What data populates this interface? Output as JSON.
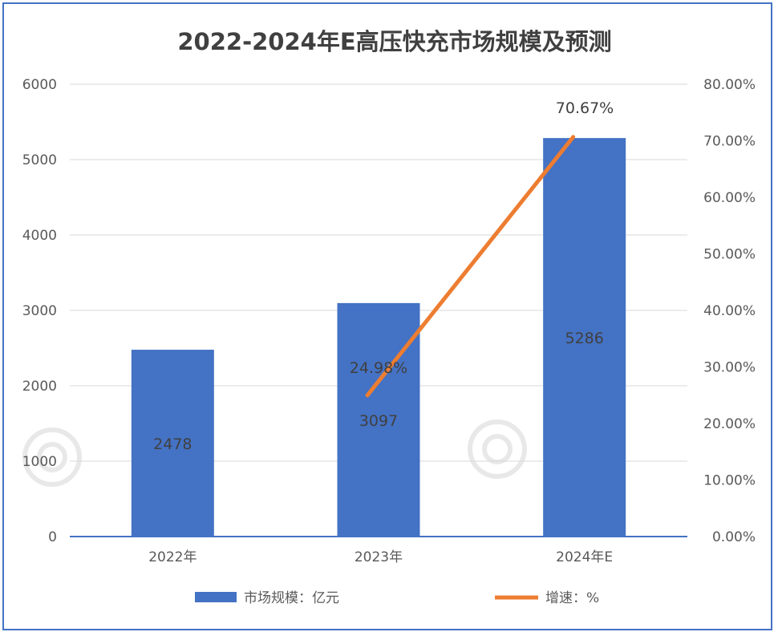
{
  "chart_data": {
    "type": "bar",
    "title": "2022-2024年E高压快充市场规模及预测",
    "categories": [
      "2022年",
      "2023年",
      "2024年E"
    ],
    "series": [
      {
        "name": "市场规模：亿元",
        "type": "bar",
        "axis": "left",
        "values": [
          2478,
          3097,
          5286
        ],
        "labels": [
          "2478",
          "3097",
          "5286"
        ],
        "color": "#4472C4"
      },
      {
        "name": "增速：%",
        "type": "line",
        "axis": "right",
        "values": [
          null,
          24.98,
          70.67
        ],
        "labels": [
          "",
          "24.98%",
          "70.67%"
        ],
        "color": "#ED7D31"
      }
    ],
    "y_left": {
      "min": 0,
      "max": 6000,
      "ticks": [
        "0",
        "1000",
        "2000",
        "3000",
        "4000",
        "5000",
        "6000"
      ]
    },
    "y_right": {
      "min": 0,
      "max": 80,
      "ticks": [
        "0.00%",
        "10.00%",
        "20.00%",
        "30.00%",
        "40.00%",
        "50.00%",
        "60.00%",
        "70.00%",
        "80.00%"
      ]
    },
    "grid": true,
    "legend_position": "bottom"
  },
  "colors": {
    "border": "#4472C4",
    "grid": "#d9d9d9",
    "axis_line": "#4472C4"
  }
}
